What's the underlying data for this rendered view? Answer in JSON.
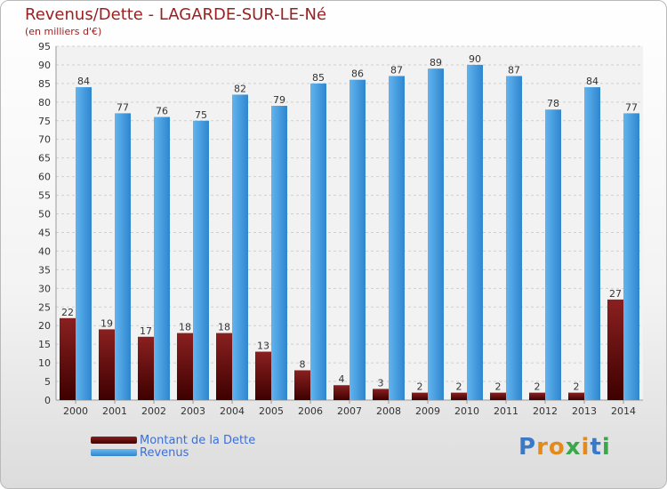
{
  "colors": {
    "title": "#9b2020",
    "dette": "#6b1010",
    "revenus": "#3a97dc",
    "legend_text": "#3c6fd6"
  },
  "logo": {
    "text": "Proxiti",
    "letters": [
      "P",
      "r",
      "o",
      "x",
      "i",
      "t",
      "i"
    ],
    "colors": [
      "#3a78c8",
      "#e48a1c",
      "#e48a1c",
      "#3aa84a",
      "#e48a1c",
      "#3a78c8",
      "#3aa84a"
    ]
  },
  "chart_data": {
    "type": "bar",
    "title": "Revenus/Dette - LAGARDE-SUR-LE-Né",
    "subtitle": "(en milliers d'€)",
    "categories": [
      "2000",
      "2001",
      "2002",
      "2003",
      "2004",
      "2005",
      "2006",
      "2007",
      "2008",
      "2009",
      "2010",
      "2011",
      "2012",
      "2013",
      "2014"
    ],
    "series": [
      {
        "name": "Montant de la Dette",
        "values": [
          22,
          19,
          17,
          18,
          18,
          13,
          8,
          4,
          3,
          2,
          2,
          2,
          2,
          2,
          27
        ]
      },
      {
        "name": "Revenus",
        "values": [
          84,
          77,
          76,
          75,
          82,
          79,
          85,
          86,
          87,
          89,
          90,
          87,
          78,
          84,
          77
        ]
      }
    ],
    "ylim": [
      0,
      95
    ],
    "yticks": [
      0,
      5,
      10,
      15,
      20,
      25,
      30,
      35,
      40,
      45,
      50,
      55,
      60,
      65,
      70,
      75,
      80,
      85,
      90,
      95
    ],
    "grid": true,
    "legend": "bottom-left"
  }
}
